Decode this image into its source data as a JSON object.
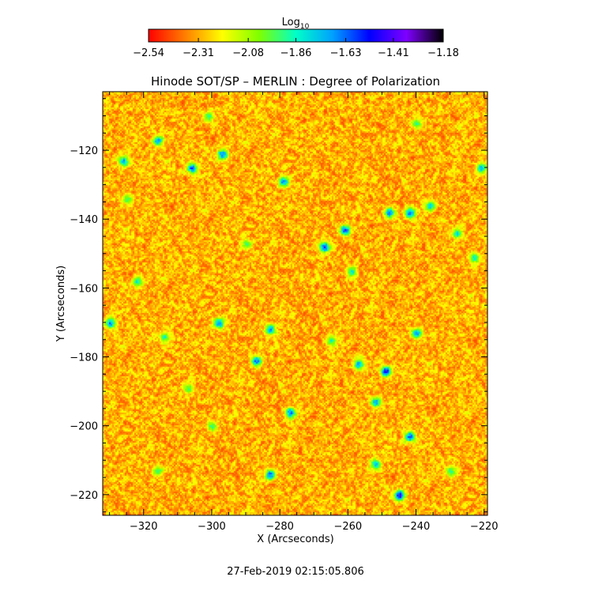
{
  "chart_data": {
    "type": "heatmap",
    "title": "Hinode SOT/SP – MERLIN : Degree of Polarization",
    "xlabel": "X (Arcseconds)",
    "ylabel": "Y (Arcseconds)",
    "xlim": [
      -332,
      -219
    ],
    "ylim": [
      -226,
      -103
    ],
    "x_ticks": [
      -320,
      -300,
      -280,
      -260,
      -240,
      -220
    ],
    "x_tick_labels": [
      "−320",
      "−300",
      "−280",
      "−260",
      "−240",
      "−220"
    ],
    "y_ticks": [
      -120,
      -140,
      -160,
      -180,
      -200,
      -220
    ],
    "y_tick_labels": [
      "−120",
      "−140",
      "−160",
      "−180",
      "−200",
      "−220"
    ],
    "colorbar": {
      "label_base": "Log",
      "label_sub": "10",
      "range": [
        -2.54,
        -1.18
      ],
      "tick_values": [
        -2.54,
        -2.31,
        -2.08,
        -1.86,
        -1.63,
        -1.41,
        -1.18
      ],
      "tick_labels": [
        "−2.54",
        "−2.31",
        "−2.08",
        "−1.86",
        "−1.63",
        "−1.41",
        "−1.18"
      ],
      "colormap": [
        "#ff0000",
        "#ff7f00",
        "#ffff00",
        "#7fff00",
        "#00ffc8",
        "#00a0ff",
        "#0000ff",
        "#7f00ff",
        "#000000"
      ]
    },
    "typical_log10_range": [
      -2.5,
      -2.1
    ],
    "features": [
      {
        "x": -245,
        "y": -220,
        "value": -1.3
      },
      {
        "x": -261,
        "y": -143,
        "value": -1.4
      },
      {
        "x": -249,
        "y": -184,
        "value": -1.35
      },
      {
        "x": -306,
        "y": -125,
        "value": -1.45
      },
      {
        "x": -297,
        "y": -121,
        "value": -1.5
      },
      {
        "x": -283,
        "y": -214,
        "value": -1.5
      },
      {
        "x": -279,
        "y": -129,
        "value": -1.55
      },
      {
        "x": -242,
        "y": -203,
        "value": -1.45
      },
      {
        "x": -248,
        "y": -138,
        "value": -1.55
      },
      {
        "x": -242,
        "y": -138,
        "value": -1.5
      },
      {
        "x": -277,
        "y": -196,
        "value": -1.55
      },
      {
        "x": -287,
        "y": -181,
        "value": -1.5
      },
      {
        "x": -283,
        "y": -172,
        "value": -1.55
      },
      {
        "x": -298,
        "y": -170,
        "value": -1.5
      },
      {
        "x": -267,
        "y": -148,
        "value": -1.45
      },
      {
        "x": -240,
        "y": -173,
        "value": -1.55
      },
      {
        "x": -330,
        "y": -170,
        "value": -1.55
      },
      {
        "x": -316,
        "y": -117,
        "value": -1.6
      },
      {
        "x": -326,
        "y": -123,
        "value": -1.6
      },
      {
        "x": -257,
        "y": -182,
        "value": -1.6
      },
      {
        "x": -252,
        "y": -193,
        "value": -1.6
      },
      {
        "x": -221,
        "y": -125,
        "value": -1.65
      },
      {
        "x": -252,
        "y": -211,
        "value": -1.65
      },
      {
        "x": -322,
        "y": -158,
        "value": -1.75
      },
      {
        "x": -259,
        "y": -155,
        "value": -1.75
      },
      {
        "x": -228,
        "y": -144,
        "value": -1.75
      },
      {
        "x": -223,
        "y": -151,
        "value": -1.75
      },
      {
        "x": -265,
        "y": -175,
        "value": -1.8
      },
      {
        "x": -314,
        "y": -174,
        "value": -1.8
      },
      {
        "x": -301,
        "y": -110,
        "value": -1.85
      },
      {
        "x": -240,
        "y": -112,
        "value": -1.85
      },
      {
        "x": -300,
        "y": -200,
        "value": -1.85
      },
      {
        "x": -316,
        "y": -213,
        "value": -1.85
      },
      {
        "x": -230,
        "y": -213,
        "value": -1.85
      },
      {
        "x": -290,
        "y": -147,
        "value": -1.9
      },
      {
        "x": -236,
        "y": -136,
        "value": -1.7
      },
      {
        "x": -325,
        "y": -134,
        "value": -1.9
      },
      {
        "x": -307,
        "y": -189,
        "value": -1.9
      }
    ]
  },
  "footer": {
    "timestamp": "27-Feb-2019 02:15:05.806"
  }
}
